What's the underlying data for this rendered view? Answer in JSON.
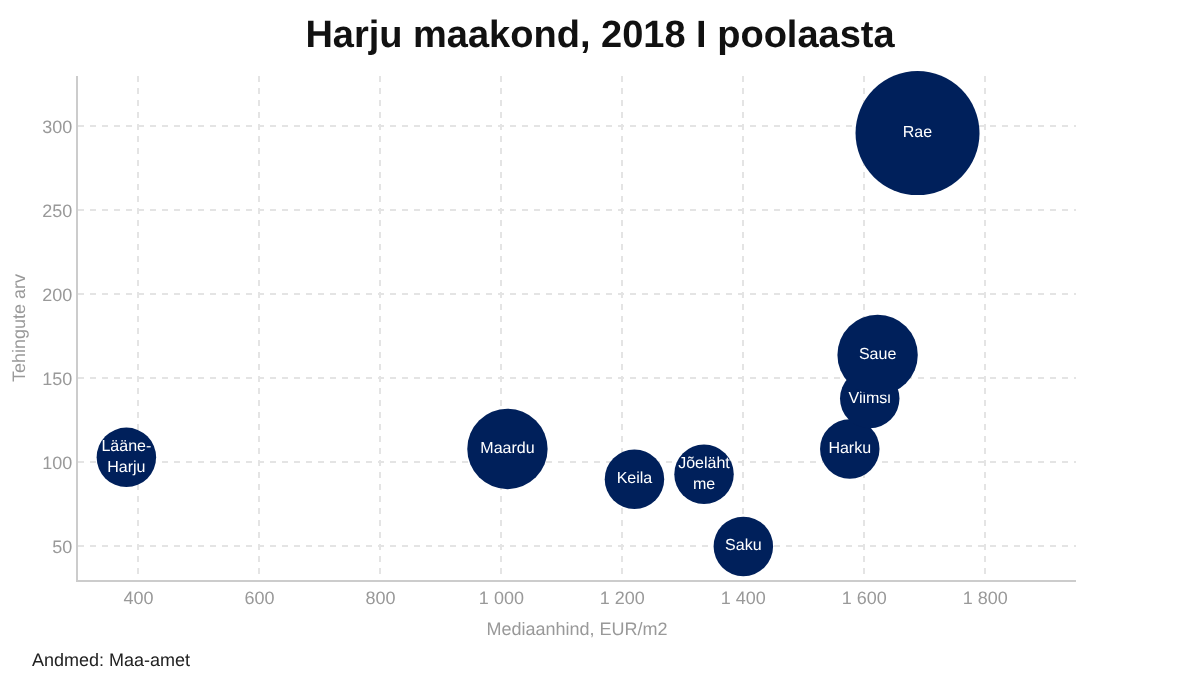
{
  "chart_data": {
    "type": "bubble",
    "title": "Harju maakond, 2018 I poolaasta",
    "xlabel": "Mediaanhind, EUR/m2",
    "ylabel": "Tehingute arv",
    "annotations": [
      "Andmed: Maa-amet"
    ],
    "series": [
      {
        "name": "Lääne-Harju",
        "color": "#00205b",
        "x": [
          380
        ],
        "values": [
          103
        ],
        "sizes": [
          0.23
        ]
      },
      {
        "name": "Maardu",
        "color": "#00205b",
        "x": [
          1010
        ],
        "values": [
          108
        ],
        "sizes": [
          0.42
        ]
      },
      {
        "name": "Keila",
        "color": "#00205b",
        "x": [
          1220
        ],
        "values": [
          90
        ],
        "sizes": [
          0.23
        ]
      },
      {
        "name": "Jõelähtme",
        "color": "#00205b",
        "x": [
          1335
        ],
        "values": [
          93
        ],
        "sizes": [
          0.23
        ]
      },
      {
        "name": "Saku",
        "color": "#00205b",
        "x": [
          1400
        ],
        "values": [
          50
        ],
        "sizes": [
          0.23
        ]
      },
      {
        "name": "Harku",
        "color": "#00205b",
        "x": [
          1576
        ],
        "values": [
          108
        ],
        "sizes": [
          0.23
        ]
      },
      {
        "name": "Viimsi",
        "color": "#00205b",
        "x": [
          1609
        ],
        "values": [
          138
        ],
        "sizes": [
          0.23
        ]
      },
      {
        "name": "Saue",
        "color": "#00205b",
        "x": [
          1622
        ],
        "values": [
          164
        ],
        "sizes": [
          0.42
        ]
      },
      {
        "name": "Rae",
        "color": "#00205b",
        "x": [
          1688
        ],
        "values": [
          296
        ],
        "sizes": [
          1
        ]
      }
    ],
    "xlim": [
      300,
      1950
    ],
    "ylim": [
      30,
      330
    ],
    "xticks": [
      400,
      600,
      800,
      {
        "value": 1000,
        "label": "1 000"
      },
      {
        "value": 1200,
        "label": "1 200"
      },
      {
        "value": 1400,
        "label": "1 400"
      },
      {
        "value": 1600,
        "label": "1 600"
      },
      {
        "value": 1800,
        "label": "1 800"
      }
    ],
    "yticks": [
      50,
      100,
      150,
      200,
      250,
      300
    ],
    "grid": true,
    "legend": false
  }
}
